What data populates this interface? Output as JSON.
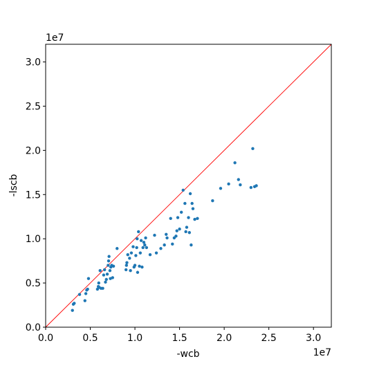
{
  "chart_data": {
    "type": "scatter",
    "title": "",
    "xlabel": "-wcb",
    "ylabel": "-lscb",
    "x_offset_label": "1e7",
    "y_offset_label": "1e7",
    "xlim": [
      0,
      32000000
    ],
    "ylim": [
      0,
      32000000
    ],
    "x_ticks": [
      0,
      5000000,
      10000000,
      15000000,
      20000000,
      25000000,
      30000000
    ],
    "x_tick_labels": [
      "0.0",
      "0.5",
      "1.0",
      "1.5",
      "2.0",
      "2.5",
      "3.0"
    ],
    "y_ticks": [
      0,
      5000000,
      10000000,
      15000000,
      20000000,
      25000000,
      30000000
    ],
    "y_tick_labels": [
      "0.0",
      "0.5",
      "1.0",
      "1.5",
      "2.0",
      "2.5",
      "3.0"
    ],
    "grid": false,
    "colors": {
      "points": "#1f77b4",
      "reference_line": "#ff0000"
    },
    "reference_line": {
      "type": "y=x",
      "from": [
        0,
        0
      ],
      "to": [
        32000000,
        32000000
      ]
    },
    "points": [
      {
        "x": 3000000,
        "y": 1900000
      },
      {
        "x": 3100000,
        "y": 2600000
      },
      {
        "x": 3200000,
        "y": 2700000
      },
      {
        "x": 3800000,
        "y": 3700000
      },
      {
        "x": 4400000,
        "y": 3000000
      },
      {
        "x": 4500000,
        "y": 3800000
      },
      {
        "x": 4600000,
        "y": 4200000
      },
      {
        "x": 4700000,
        "y": 4300000
      },
      {
        "x": 4800000,
        "y": 5500000
      },
      {
        "x": 5800000,
        "y": 4300000
      },
      {
        "x": 5900000,
        "y": 4600000
      },
      {
        "x": 5950000,
        "y": 5000000
      },
      {
        "x": 6000000,
        "y": 4500000
      },
      {
        "x": 6100000,
        "y": 6400000
      },
      {
        "x": 6200000,
        "y": 4400000
      },
      {
        "x": 6400000,
        "y": 4400000
      },
      {
        "x": 6500000,
        "y": 5900000
      },
      {
        "x": 6600000,
        "y": 6500000
      },
      {
        "x": 6700000,
        "y": 5100000
      },
      {
        "x": 6800000,
        "y": 5400000
      },
      {
        "x": 6900000,
        "y": 6000000
      },
      {
        "x": 7000000,
        "y": 7000000
      },
      {
        "x": 7050000,
        "y": 7500000
      },
      {
        "x": 7100000,
        "y": 8000000
      },
      {
        "x": 7200000,
        "y": 6400000
      },
      {
        "x": 7250000,
        "y": 5500000
      },
      {
        "x": 7300000,
        "y": 6800000
      },
      {
        "x": 7400000,
        "y": 7000000
      },
      {
        "x": 7500000,
        "y": 5600000
      },
      {
        "x": 7600000,
        "y": 6900000
      },
      {
        "x": 8000000,
        "y": 8900000
      },
      {
        "x": 9000000,
        "y": 6500000
      },
      {
        "x": 9050000,
        "y": 7000000
      },
      {
        "x": 9100000,
        "y": 7300000
      },
      {
        "x": 9200000,
        "y": 8200000
      },
      {
        "x": 9400000,
        "y": 7800000
      },
      {
        "x": 9500000,
        "y": 6400000
      },
      {
        "x": 9600000,
        "y": 8400000
      },
      {
        "x": 9800000,
        "y": 9100000
      },
      {
        "x": 9900000,
        "y": 6800000
      },
      {
        "x": 10000000,
        "y": 7000000
      },
      {
        "x": 10100000,
        "y": 8100000
      },
      {
        "x": 10200000,
        "y": 9000000
      },
      {
        "x": 10250000,
        "y": 10000000
      },
      {
        "x": 10300000,
        "y": 6200000
      },
      {
        "x": 10400000,
        "y": 10800000
      },
      {
        "x": 10500000,
        "y": 6900000
      },
      {
        "x": 10600000,
        "y": 8400000
      },
      {
        "x": 10700000,
        "y": 9800000
      },
      {
        "x": 10800000,
        "y": 6800000
      },
      {
        "x": 10900000,
        "y": 9000000
      },
      {
        "x": 11000000,
        "y": 9600000
      },
      {
        "x": 11100000,
        "y": 9300000
      },
      {
        "x": 11200000,
        "y": 10100000
      },
      {
        "x": 11300000,
        "y": 9000000
      },
      {
        "x": 11700000,
        "y": 8200000
      },
      {
        "x": 12200000,
        "y": 10400000
      },
      {
        "x": 12400000,
        "y": 8400000
      },
      {
        "x": 12900000,
        "y": 8900000
      },
      {
        "x": 13300000,
        "y": 9300000
      },
      {
        "x": 13500000,
        "y": 10500000
      },
      {
        "x": 13600000,
        "y": 10100000
      },
      {
        "x": 14000000,
        "y": 12300000
      },
      {
        "x": 14200000,
        "y": 9400000
      },
      {
        "x": 14400000,
        "y": 10100000
      },
      {
        "x": 14600000,
        "y": 10300000
      },
      {
        "x": 14700000,
        "y": 10900000
      },
      {
        "x": 14800000,
        "y": 12400000
      },
      {
        "x": 15000000,
        "y": 11100000
      },
      {
        "x": 15200000,
        "y": 13000000
      },
      {
        "x": 15400000,
        "y": 15500000
      },
      {
        "x": 15600000,
        "y": 14000000
      },
      {
        "x": 15700000,
        "y": 10800000
      },
      {
        "x": 15800000,
        "y": 11300000
      },
      {
        "x": 16000000,
        "y": 12400000
      },
      {
        "x": 16100000,
        "y": 10700000
      },
      {
        "x": 16200000,
        "y": 15100000
      },
      {
        "x": 16300000,
        "y": 9300000
      },
      {
        "x": 16400000,
        "y": 14000000
      },
      {
        "x": 16500000,
        "y": 13400000
      },
      {
        "x": 16700000,
        "y": 12200000
      },
      {
        "x": 17000000,
        "y": 12300000
      },
      {
        "x": 18700000,
        "y": 14300000
      },
      {
        "x": 19600000,
        "y": 15700000
      },
      {
        "x": 20500000,
        "y": 16200000
      },
      {
        "x": 21200000,
        "y": 18600000
      },
      {
        "x": 21600000,
        "y": 16700000
      },
      {
        "x": 21800000,
        "y": 16100000
      },
      {
        "x": 23000000,
        "y": 15800000
      },
      {
        "x": 23200000,
        "y": 20200000
      },
      {
        "x": 23400000,
        "y": 15900000
      },
      {
        "x": 23600000,
        "y": 16000000
      }
    ]
  }
}
